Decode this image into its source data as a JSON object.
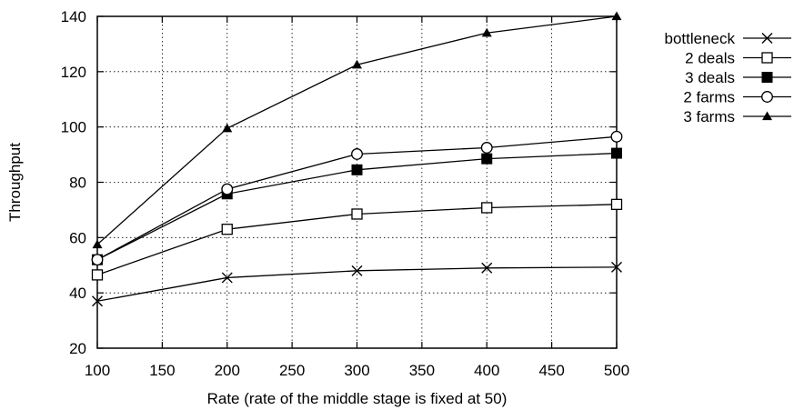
{
  "chart_data": {
    "type": "line",
    "title": "",
    "xlabel": "Rate (rate of the middle stage is fixed at 50)",
    "ylabel": "Throughput",
    "xlim": [
      100,
      500
    ],
    "ylim": [
      20,
      140
    ],
    "xticks": [
      100,
      150,
      200,
      250,
      300,
      350,
      400,
      450,
      500
    ],
    "yticks": [
      20,
      40,
      60,
      80,
      100,
      120,
      140
    ],
    "grid": true,
    "legend_position": "outside-right-top",
    "x": [
      100,
      200,
      300,
      400,
      500
    ],
    "series": [
      {
        "name": "bottleneck",
        "marker": "cross",
        "values": [
          37,
          45.5,
          48,
          49,
          49.3
        ]
      },
      {
        "name": "2 deals",
        "marker": "square-open",
        "values": [
          46.5,
          63,
          68.5,
          70.8,
          72
        ]
      },
      {
        "name": "3 deals",
        "marker": "square-filled",
        "values": [
          52,
          75.8,
          84.5,
          88.5,
          90.5
        ]
      },
      {
        "name": "2 farms",
        "marker": "circle-open",
        "values": [
          52,
          77.5,
          90.2,
          92.5,
          96.5
        ]
      },
      {
        "name": "3 farms",
        "marker": "triangle-filled",
        "values": [
          57.5,
          99.5,
          122.5,
          134,
          140
        ]
      }
    ]
  }
}
